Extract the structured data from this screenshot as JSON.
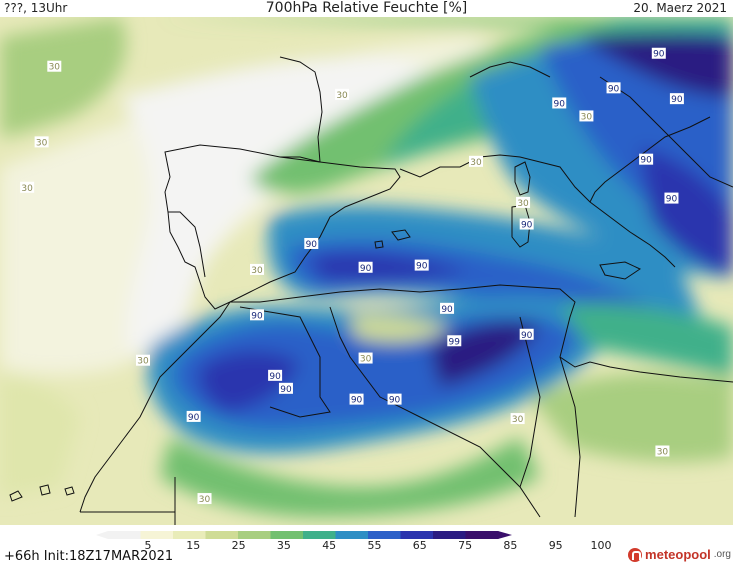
{
  "header": {
    "left": "???, 13Uhr",
    "title": "700hPa Relative Feuchte [%]",
    "date": "20. Maerz 2021"
  },
  "footer": {
    "run_info": "+66h Init:18Z17MAR2021",
    "brand_name": "meteopool",
    "brand_tld": ".org"
  },
  "legend": {
    "ticks": [
      "5",
      "15",
      "25",
      "35",
      "45",
      "55",
      "65",
      "75",
      "85",
      "95",
      "100"
    ],
    "colors": [
      "#f2f2f2",
      "#f6f4d6",
      "#e9ecb9",
      "#cfdc96",
      "#a8ce80",
      "#72c070",
      "#3fb08a",
      "#2e8ec4",
      "#2c60c8",
      "#2b34ae",
      "#2a1b82",
      "#3a0f6b"
    ]
  },
  "contour_labels": [
    {
      "text": "30",
      "lon": -17.2,
      "lat": 47.6
    },
    {
      "text": "30",
      "lon": -1.3,
      "lat": 46.3
    },
    {
      "text": "30",
      "lon": 12.2,
      "lat": 45.3
    },
    {
      "text": "30",
      "lon": 6.1,
      "lat": 43.2
    },
    {
      "text": "30",
      "lon": 8.7,
      "lat": 41.3
    },
    {
      "text": "30",
      "lon": -17.9,
      "lat": 44.1
    },
    {
      "text": "30",
      "lon": -18.7,
      "lat": 42.0
    },
    {
      "text": "30",
      "lon": -6.0,
      "lat": 38.2
    },
    {
      "text": "30",
      "lon": -12.3,
      "lat": 34.0
    },
    {
      "text": "30",
      "lon": 0.0,
      "lat": 34.1
    },
    {
      "text": "30",
      "lon": 8.4,
      "lat": 31.3
    },
    {
      "text": "30",
      "lon": 16.4,
      "lat": 29.8
    },
    {
      "text": "30",
      "lon": -8.9,
      "lat": 27.6
    },
    {
      "text": "90",
      "lon": 16.2,
      "lat": 48.2
    },
    {
      "text": "90",
      "lon": 13.7,
      "lat": 46.6
    },
    {
      "text": "90",
      "lon": 10.7,
      "lat": 45.9
    },
    {
      "text": "90",
      "lon": 17.2,
      "lat": 46.1
    },
    {
      "text": "90",
      "lon": 15.5,
      "lat": 43.3
    },
    {
      "text": "90",
      "lon": 16.9,
      "lat": 41.5
    },
    {
      "text": "90",
      "lon": 8.9,
      "lat": 40.3
    },
    {
      "text": "90",
      "lon": -3.0,
      "lat": 39.4
    },
    {
      "text": "90",
      "lon": 0.0,
      "lat": 38.3
    },
    {
      "text": "90",
      "lon": 3.1,
      "lat": 38.4
    },
    {
      "text": "90",
      "lon": -6.0,
      "lat": 36.1
    },
    {
      "text": "90",
      "lon": 4.5,
      "lat": 36.4
    },
    {
      "text": "99",
      "lon": 4.9,
      "lat": 34.9
    },
    {
      "text": "90",
      "lon": 8.9,
      "lat": 35.2
    },
    {
      "text": "90",
      "lon": -5.0,
      "lat": 33.3
    },
    {
      "text": "90",
      "lon": -4.4,
      "lat": 32.7
    },
    {
      "text": "90",
      "lon": -0.5,
      "lat": 32.2
    },
    {
      "text": "90",
      "lon": 1.6,
      "lat": 32.2
    },
    {
      "text": "90",
      "lon": -9.5,
      "lat": 31.4
    }
  ]
}
